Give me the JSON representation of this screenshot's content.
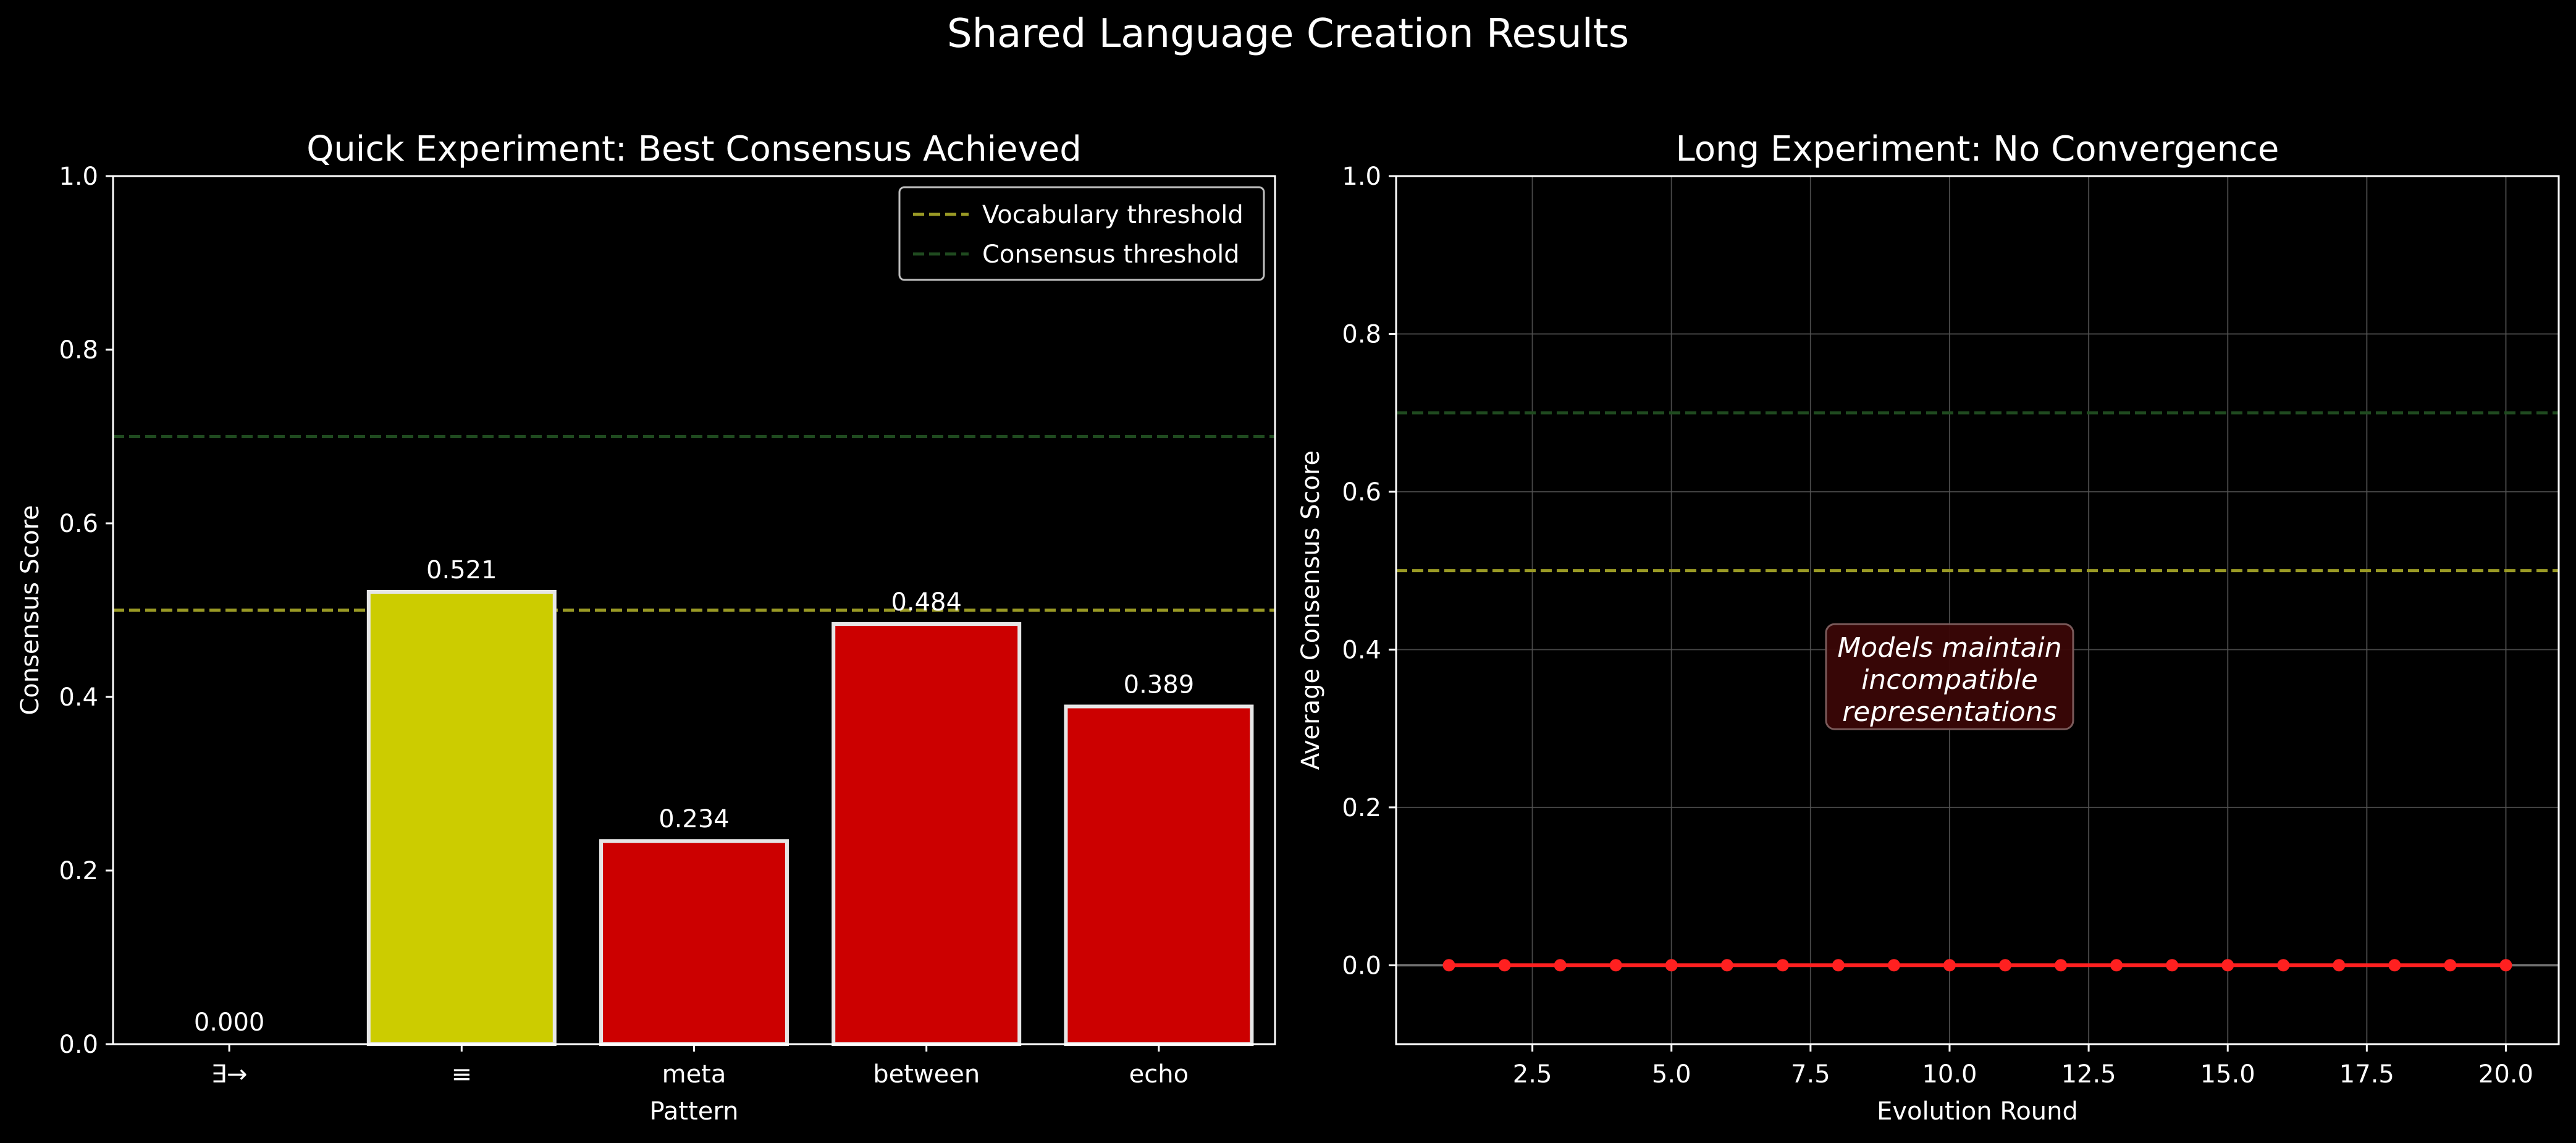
{
  "figure": {
    "suptitle": "Shared Language Creation Results"
  },
  "colors": {
    "background": "#000000",
    "text": "#ffffff",
    "axes_edge": "#ffffff",
    "vocabulary_threshold": "#9a9a25",
    "consensus_threshold": "#1f4a1f",
    "bar_above_threshold": "#cccc00",
    "bar_below_threshold": "#cc0000",
    "bar_edge": "#e6e6e6",
    "line_series": "#ff2020",
    "annotation_fill": "#3a0606",
    "grid": "#555555"
  },
  "chart_data": [
    {
      "type": "bar",
      "title": "Quick Experiment: Best Consensus Achieved",
      "xlabel": "Pattern",
      "ylabel": "Consensus Score",
      "categories": [
        "∃→",
        "≡",
        "meta",
        "between",
        "echo"
      ],
      "values": [
        0.0,
        0.521,
        0.234,
        0.484,
        0.389
      ],
      "value_labels": [
        "0.000",
        "0.521",
        "0.234",
        "0.484",
        "0.389"
      ],
      "bar_colors": [
        "#cc0000",
        "#cccc00",
        "#cc0000",
        "#cc0000",
        "#cc0000"
      ],
      "ylim": [
        0,
        1.0
      ],
      "yticks": [
        0.0,
        0.2,
        0.4,
        0.6,
        0.8,
        1.0
      ],
      "ytick_labels": [
        "0.0",
        "0.2",
        "0.4",
        "0.6",
        "0.8",
        "1.0"
      ],
      "hlines": [
        {
          "name": "Vocabulary threshold",
          "y": 0.5,
          "color": "#9a9a25"
        },
        {
          "name": "Consensus threshold",
          "y": 0.7,
          "color": "#1f4a1f"
        }
      ],
      "legend": {
        "placement": "upper right",
        "entries": [
          "Vocabulary threshold",
          "Consensus threshold"
        ]
      },
      "grid": false
    },
    {
      "type": "line",
      "title": "Long Experiment: No Convergence",
      "xlabel": "Evolution Round",
      "ylabel": "Average Consensus Score",
      "x": [
        1,
        2,
        3,
        4,
        5,
        6,
        7,
        8,
        9,
        10,
        11,
        12,
        13,
        14,
        15,
        16,
        17,
        18,
        19,
        20
      ],
      "y": [
        0,
        0,
        0,
        0,
        0,
        0,
        0,
        0,
        0,
        0,
        0,
        0,
        0,
        0,
        0,
        0,
        0,
        0,
        0,
        0
      ],
      "xlim": [
        0.05,
        20.95
      ],
      "ylim": [
        -0.1,
        1.0
      ],
      "xticks": [
        2.5,
        5.0,
        7.5,
        10.0,
        12.5,
        15.0,
        17.5,
        20.0
      ],
      "xtick_labels": [
        "2.5",
        "5.0",
        "7.5",
        "10.0",
        "12.5",
        "15.0",
        "17.5",
        "20.0"
      ],
      "yticks": [
        0.0,
        0.2,
        0.4,
        0.6,
        0.8,
        1.0
      ],
      "ytick_labels": [
        "0.0",
        "0.2",
        "0.4",
        "0.6",
        "0.8",
        "1.0"
      ],
      "hlines": [
        {
          "y": 0.5,
          "color": "#9a9a25"
        },
        {
          "y": 0.7,
          "color": "#1f4a1f"
        },
        {
          "y": 0.0,
          "color": "#808080"
        }
      ],
      "annotation": {
        "lines": [
          "Models maintain",
          "incompatible",
          "representations"
        ],
        "x": 10.0,
        "y": 0.35
      },
      "grid": true
    }
  ]
}
